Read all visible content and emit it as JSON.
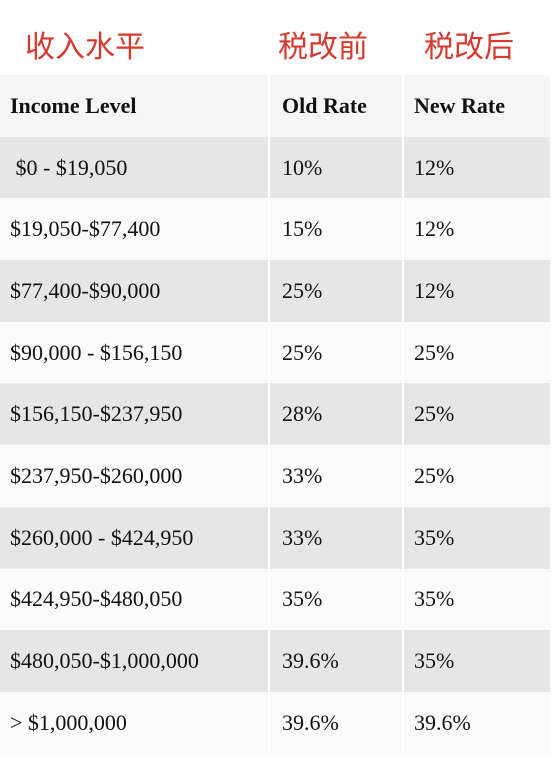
{
  "annotations": [
    "收入水平",
    "税改前",
    "税改后"
  ],
  "table": {
    "header": [
      "Income Level",
      "Old Rate",
      "New Rate"
    ],
    "rows": [
      [
        " $0 - $19,050",
        "10%",
        "12%"
      ],
      [
        "$19,050-$77,400",
        "15%",
        "12%"
      ],
      [
        "$77,400-$90,000",
        "25%",
        "12%"
      ],
      [
        "$90,000 - $156,150",
        "25%",
        "25%"
      ],
      [
        "$156,150-$237,950",
        "28%",
        "25%"
      ],
      [
        "$237,950-$260,000",
        "33%",
        "25%"
      ],
      [
        "$260,000 - $424,950",
        "33%",
        "35%"
      ],
      [
        "$424,950-$480,050",
        "35%",
        "35%"
      ],
      [
        "$480,050-$1,000,000",
        "39.6%",
        "35%"
      ],
      [
        "> $1,000,000",
        "39.6%",
        "39.6%"
      ]
    ]
  }
}
